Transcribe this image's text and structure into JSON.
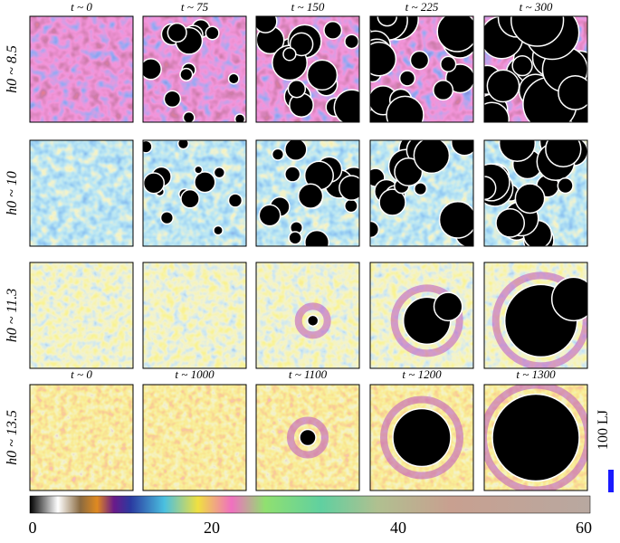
{
  "columns_top": [
    "t ~ 0",
    "t ~ 75",
    "t ~ 150",
    "t ~ 225",
    "t ~ 300"
  ],
  "columns_bottom": [
    "t ~ 0",
    "t ~ 1000",
    "t ~ 1100",
    "t ~ 1200",
    "t ~ 1300"
  ],
  "rows": [
    "h0 ~ 8.5",
    "h0 ~ 10",
    "h0 ~ 11.3",
    "h0 ~ 13.5"
  ],
  "colorbar": {
    "ticks": [
      "0",
      "20",
      "40",
      "60"
    ]
  },
  "scale_bar": "100 LJ"
}
